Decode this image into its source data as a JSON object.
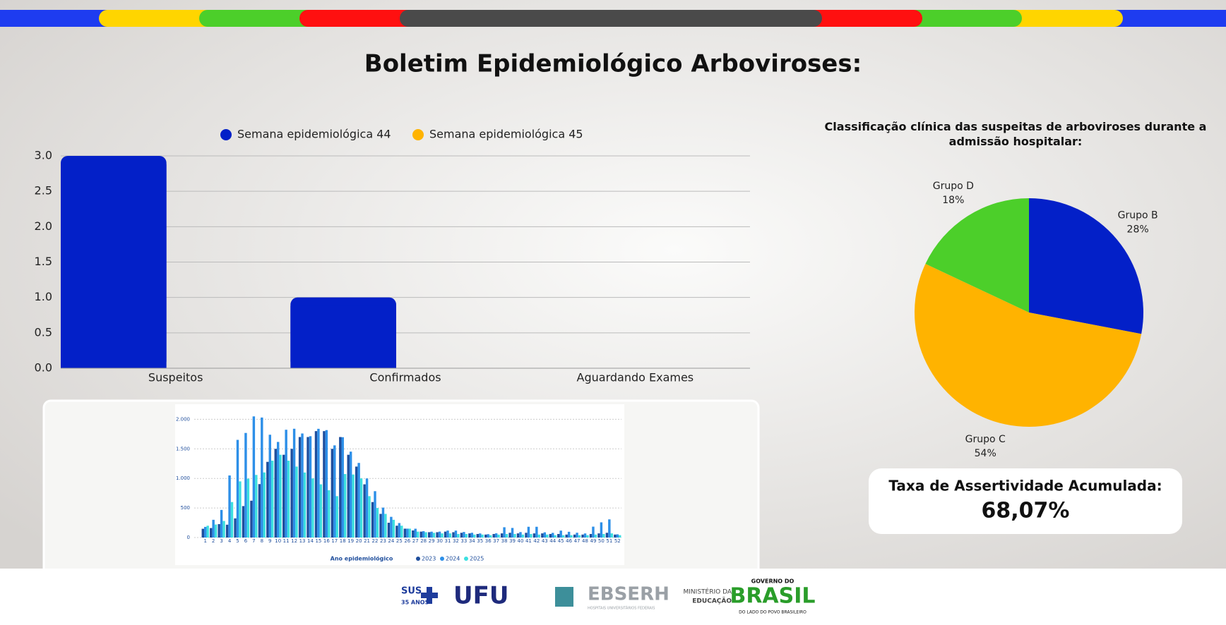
{
  "header": {
    "title": "Boletim Epidemiológico Arboviroses:"
  },
  "chart_data": [
    {
      "type": "bar",
      "categories": [
        "Suspeitos",
        "Confirmados",
        "Aguardando Exames"
      ],
      "series": [
        {
          "name": "Semana epidemiológica 44",
          "color": "#0320c8",
          "values": [
            3,
            1,
            0
          ]
        },
        {
          "name": "Semana epidemiológica 45",
          "color": "#ffb300",
          "values": [
            0,
            0,
            0
          ]
        }
      ],
      "ylim": [
        0,
        3
      ],
      "yticks": [
        {
          "value": 0,
          "label": "0.0"
        },
        {
          "value": 0.5,
          "label": "0.5"
        },
        {
          "value": 1,
          "label": "1.0"
        },
        {
          "value": 1.5,
          "label": "1.5"
        },
        {
          "value": 2,
          "label": "2.0"
        },
        {
          "value": 2.5,
          "label": "2.5"
        },
        {
          "value": 3,
          "label": "3.0"
        }
      ],
      "grid": true,
      "legend": "top"
    },
    {
      "type": "pie",
      "title": "Classificação clínica das suspeitas de arboviroses durante a admissão hospitalar:",
      "categories": [
        "Grupo B",
        "Grupo C",
        "Grupo D"
      ],
      "values": [
        28,
        54,
        18
      ],
      "value_labels": [
        "28%",
        "54%",
        "18%"
      ],
      "colors": [
        "#0320c8",
        "#ffb300",
        "#4ccf2a"
      ]
    },
    {
      "type": "bar",
      "x_label": "Ano epidemiológico",
      "categories": [
        "1",
        "2",
        "3",
        "4",
        "5",
        "6",
        "7",
        "8",
        "9",
        "10",
        "11",
        "12",
        "13",
        "14",
        "15",
        "16",
        "17",
        "18",
        "19",
        "20",
        "21",
        "22",
        "23",
        "24",
        "25",
        "26",
        "27",
        "28",
        "29",
        "30",
        "31",
        "32",
        "33",
        "34",
        "35",
        "36",
        "37",
        "38",
        "39",
        "40",
        "41",
        "42",
        "43",
        "44",
        "45",
        "46",
        "47",
        "48",
        "49",
        "50",
        "51",
        "52"
      ],
      "series": [
        {
          "name": "2023",
          "color": "#1f4e9c",
          "values": [
            148,
            160,
            227,
            217,
            324,
            532,
            623,
            904,
            1280,
            1500,
            1400,
            1500,
            1700,
            1700,
            1800,
            1800,
            1500,
            1700,
            1400,
            1200,
            900,
            600,
            400,
            250,
            200,
            150,
            120,
            100,
            90,
            90,
            100,
            90,
            80,
            70,
            60,
            50,
            60,
            70,
            80,
            70,
            80,
            70,
            70,
            60,
            60,
            50,
            50,
            50,
            60,
            70,
            80,
            50
          ]
        },
        {
          "name": "2024",
          "color": "#2d8fe8",
          "values": [
            180,
            300,
            467,
            1050,
            1652,
            1769,
            2049,
            2030,
            1739,
            1617,
            1823,
            1840,
            1760,
            1714,
            1839,
            1817,
            1559,
            1697,
            1453,
            1262,
            999,
            784,
            506,
            350,
            245,
            150,
            149,
            107,
            99,
            100,
            118,
            117,
            94,
            81,
            69,
            57,
            71,
            174,
            162,
            92,
            182,
            182,
            88,
            79,
            117,
            97,
            81,
            69,
            184,
            257,
            307,
            54
          ]
        },
        {
          "name": "2025",
          "color": "#3ce0e0",
          "values": [
            200,
            220,
            280,
            600,
            950,
            996,
            1059,
            1101,
            1300,
            1400,
            1300,
            1200,
            1100,
            1000,
            900,
            800,
            700,
            1074,
            1066,
            1000,
            700,
            500,
            400,
            300,
            200,
            150,
            100,
            90,
            80,
            70,
            70,
            60,
            60,
            50,
            50,
            40,
            50,
            60,
            60,
            50,
            60,
            50,
            50,
            40,
            40,
            40,
            40,
            40,
            50,
            60,
            70,
            40
          ]
        }
      ],
      "ylim": [
        0,
        2100
      ],
      "yticks": [
        0,
        500,
        {
          "value": 1000,
          "label": "1.000"
        },
        {
          "value": 1500,
          "label": "1.500"
        },
        {
          "value": 2000,
          "label": "2.000"
        }
      ],
      "grid": true
    }
  ],
  "kpi": {
    "label": "Taxa de Assertividade Acumulada:",
    "value": "68,07%"
  },
  "footer": {
    "sus": "SUS",
    "sus_years": "35 ANOS",
    "ufu": "UFU",
    "ebserh": "EBSERH",
    "ebserh_sub": "HOSPITAIS UNIVERSITÁRIOS FEDERAIS",
    "mec_1": "MINISTÉRIO DA",
    "mec_2": "EDUCAÇÃO",
    "gov_1": "GOVERNO DO",
    "gov_2": "BRASIL",
    "gov_3": "DO LADO DO POVO BRASILEIRO"
  }
}
